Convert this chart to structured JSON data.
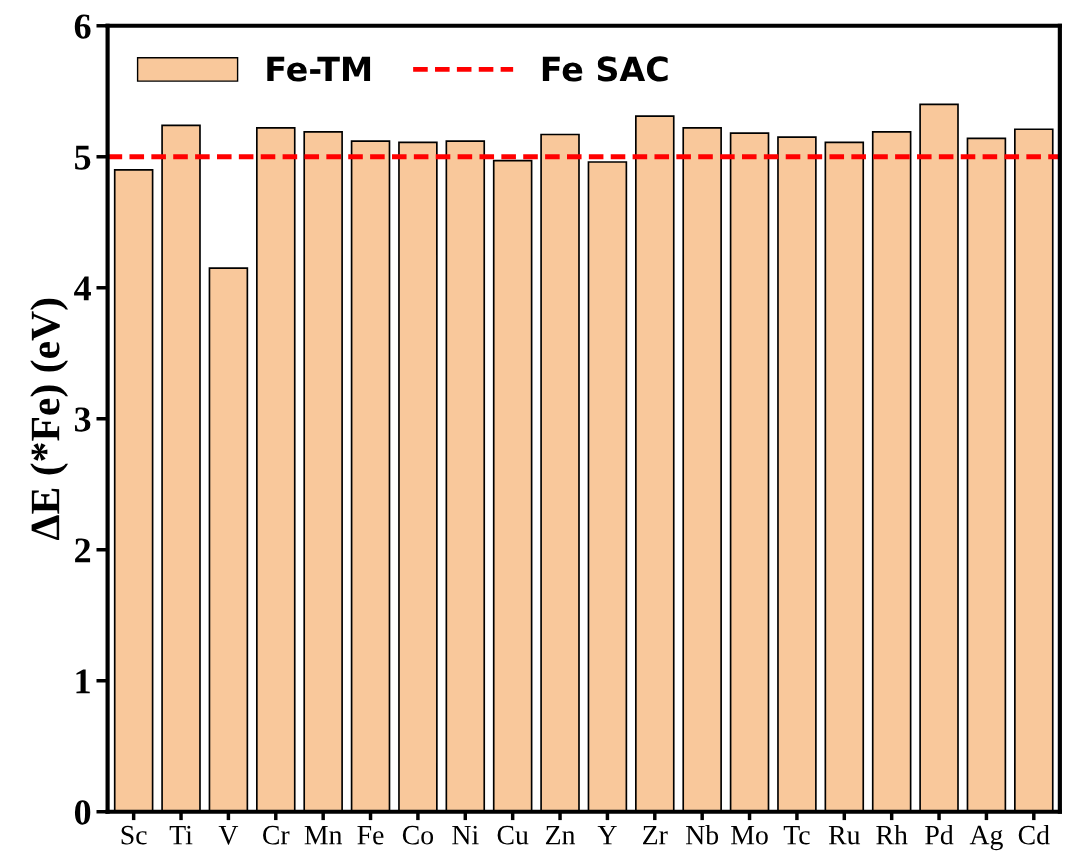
{
  "chart_data": {
    "type": "bar",
    "ylabel": "ΔE (*Fe) (eV)",
    "categories": [
      "Sc",
      "Ti",
      "V",
      "Cr",
      "Mn",
      "Fe",
      "Co",
      "Ni",
      "Cu",
      "Zn",
      "Y",
      "Zr",
      "Nb",
      "Mo",
      "Tc",
      "Ru",
      "Rh",
      "Pd",
      "Ag",
      "Cd"
    ],
    "series": [
      {
        "name": "Fe-TM",
        "color": "#f9c89b",
        "values": [
          4.9,
          5.24,
          4.15,
          5.22,
          5.19,
          5.12,
          5.11,
          5.12,
          4.97,
          5.17,
          4.96,
          5.31,
          5.22,
          5.18,
          5.15,
          5.11,
          5.19,
          5.4,
          5.14,
          5.21
        ]
      }
    ],
    "ylim": [
      0,
      6
    ],
    "yticks": [
      0,
      1,
      2,
      3,
      4,
      5,
      6
    ],
    "ref_lines": [
      {
        "axis": "y",
        "value": 5,
        "label": "Fe SAC",
        "color": "#ff0000",
        "line_style": "dashed"
      }
    ],
    "legend": "top left",
    "grid": false
  }
}
